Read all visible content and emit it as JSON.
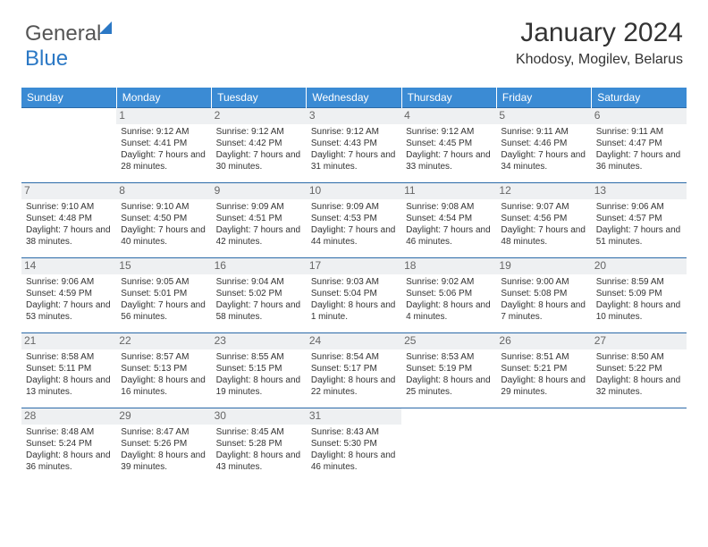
{
  "brand": {
    "part1": "General",
    "part2": "Blue"
  },
  "title": "January 2024",
  "location": "Khodosy, Mogilev, Belarus",
  "colors": {
    "header_bg": "#3b8bd4",
    "row_border": "#2b6aa8",
    "daynum_bg": "#eef0f2",
    "text": "#333333",
    "brand_blue": "#2b78c5"
  },
  "weekday_labels": [
    "Sunday",
    "Monday",
    "Tuesday",
    "Wednesday",
    "Thursday",
    "Friday",
    "Saturday"
  ],
  "weeks": [
    [
      null,
      {
        "n": "1",
        "sr": "9:12 AM",
        "ss": "4:41 PM",
        "dl": "7 hours and 28 minutes."
      },
      {
        "n": "2",
        "sr": "9:12 AM",
        "ss": "4:42 PM",
        "dl": "7 hours and 30 minutes."
      },
      {
        "n": "3",
        "sr": "9:12 AM",
        "ss": "4:43 PM",
        "dl": "7 hours and 31 minutes."
      },
      {
        "n": "4",
        "sr": "9:12 AM",
        "ss": "4:45 PM",
        "dl": "7 hours and 33 minutes."
      },
      {
        "n": "5",
        "sr": "9:11 AM",
        "ss": "4:46 PM",
        "dl": "7 hours and 34 minutes."
      },
      {
        "n": "6",
        "sr": "9:11 AM",
        "ss": "4:47 PM",
        "dl": "7 hours and 36 minutes."
      }
    ],
    [
      {
        "n": "7",
        "sr": "9:10 AM",
        "ss": "4:48 PM",
        "dl": "7 hours and 38 minutes."
      },
      {
        "n": "8",
        "sr": "9:10 AM",
        "ss": "4:50 PM",
        "dl": "7 hours and 40 minutes."
      },
      {
        "n": "9",
        "sr": "9:09 AM",
        "ss": "4:51 PM",
        "dl": "7 hours and 42 minutes."
      },
      {
        "n": "10",
        "sr": "9:09 AM",
        "ss": "4:53 PM",
        "dl": "7 hours and 44 minutes."
      },
      {
        "n": "11",
        "sr": "9:08 AM",
        "ss": "4:54 PM",
        "dl": "7 hours and 46 minutes."
      },
      {
        "n": "12",
        "sr": "9:07 AM",
        "ss": "4:56 PM",
        "dl": "7 hours and 48 minutes."
      },
      {
        "n": "13",
        "sr": "9:06 AM",
        "ss": "4:57 PM",
        "dl": "7 hours and 51 minutes."
      }
    ],
    [
      {
        "n": "14",
        "sr": "9:06 AM",
        "ss": "4:59 PM",
        "dl": "7 hours and 53 minutes."
      },
      {
        "n": "15",
        "sr": "9:05 AM",
        "ss": "5:01 PM",
        "dl": "7 hours and 56 minutes."
      },
      {
        "n": "16",
        "sr": "9:04 AM",
        "ss": "5:02 PM",
        "dl": "7 hours and 58 minutes."
      },
      {
        "n": "17",
        "sr": "9:03 AM",
        "ss": "5:04 PM",
        "dl": "8 hours and 1 minute."
      },
      {
        "n": "18",
        "sr": "9:02 AM",
        "ss": "5:06 PM",
        "dl": "8 hours and 4 minutes."
      },
      {
        "n": "19",
        "sr": "9:00 AM",
        "ss": "5:08 PM",
        "dl": "8 hours and 7 minutes."
      },
      {
        "n": "20",
        "sr": "8:59 AM",
        "ss": "5:09 PM",
        "dl": "8 hours and 10 minutes."
      }
    ],
    [
      {
        "n": "21",
        "sr": "8:58 AM",
        "ss": "5:11 PM",
        "dl": "8 hours and 13 minutes."
      },
      {
        "n": "22",
        "sr": "8:57 AM",
        "ss": "5:13 PM",
        "dl": "8 hours and 16 minutes."
      },
      {
        "n": "23",
        "sr": "8:55 AM",
        "ss": "5:15 PM",
        "dl": "8 hours and 19 minutes."
      },
      {
        "n": "24",
        "sr": "8:54 AM",
        "ss": "5:17 PM",
        "dl": "8 hours and 22 minutes."
      },
      {
        "n": "25",
        "sr": "8:53 AM",
        "ss": "5:19 PM",
        "dl": "8 hours and 25 minutes."
      },
      {
        "n": "26",
        "sr": "8:51 AM",
        "ss": "5:21 PM",
        "dl": "8 hours and 29 minutes."
      },
      {
        "n": "27",
        "sr": "8:50 AM",
        "ss": "5:22 PM",
        "dl": "8 hours and 32 minutes."
      }
    ],
    [
      {
        "n": "28",
        "sr": "8:48 AM",
        "ss": "5:24 PM",
        "dl": "8 hours and 36 minutes."
      },
      {
        "n": "29",
        "sr": "8:47 AM",
        "ss": "5:26 PM",
        "dl": "8 hours and 39 minutes."
      },
      {
        "n": "30",
        "sr": "8:45 AM",
        "ss": "5:28 PM",
        "dl": "8 hours and 43 minutes."
      },
      {
        "n": "31",
        "sr": "8:43 AM",
        "ss": "5:30 PM",
        "dl": "8 hours and 46 minutes."
      },
      null,
      null,
      null
    ]
  ]
}
